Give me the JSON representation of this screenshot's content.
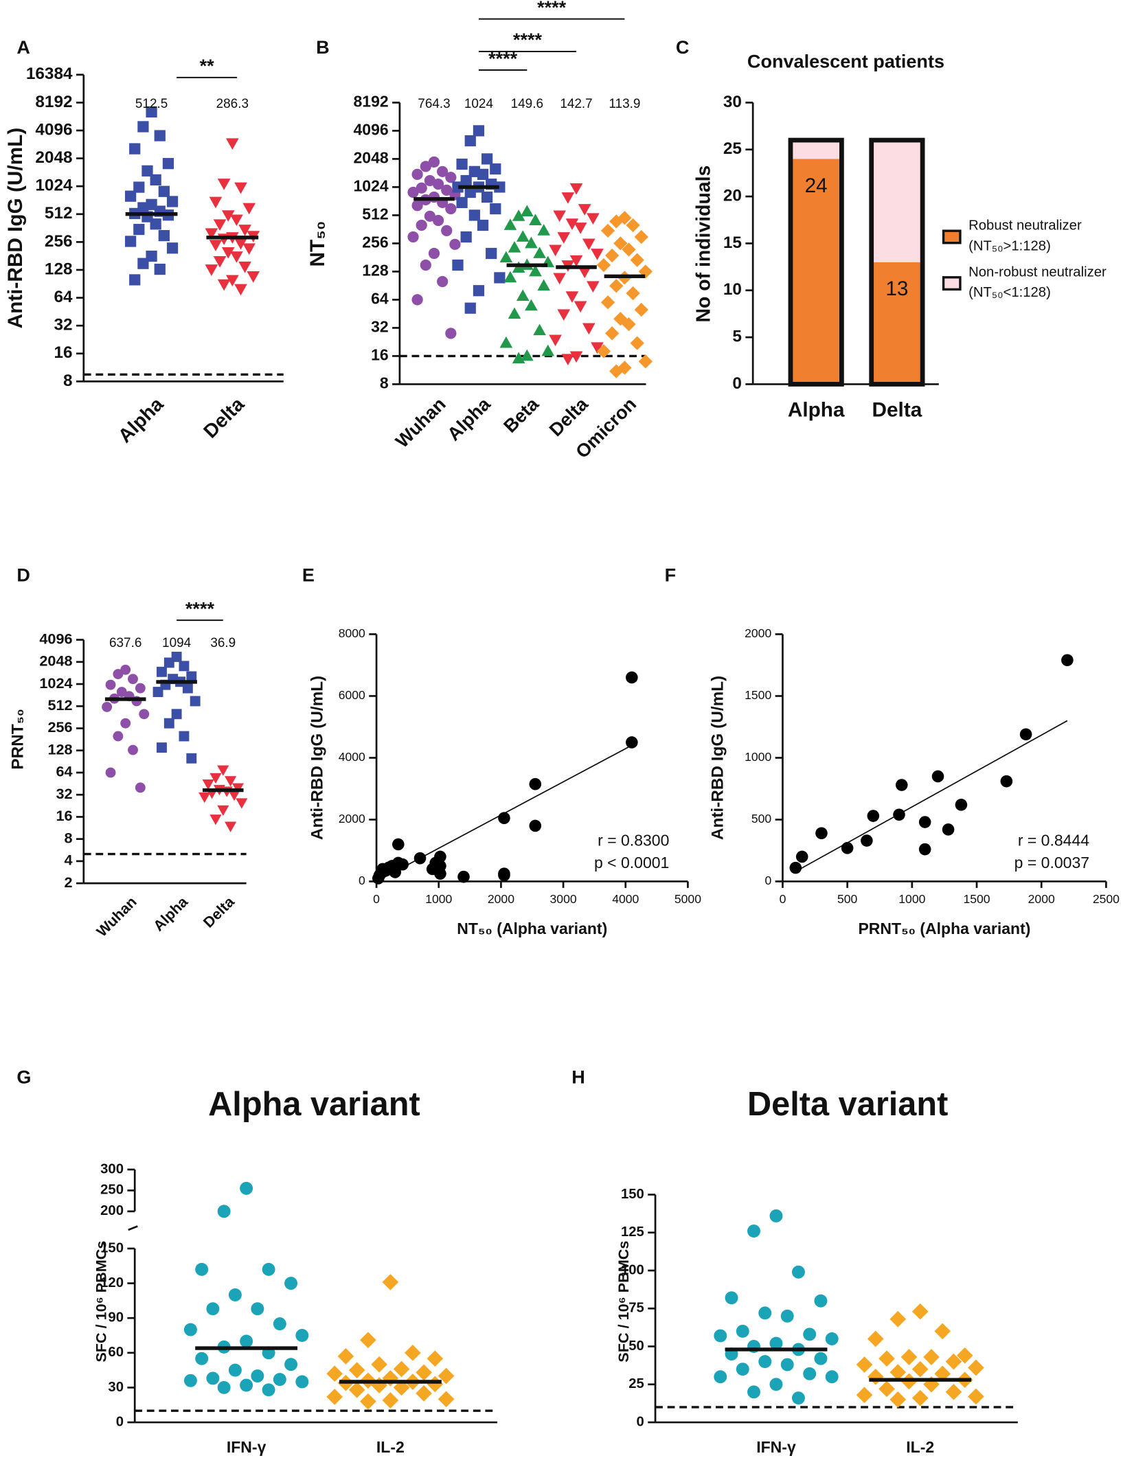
{
  "chart_data": [
    {
      "type": "strip",
      "panel": "A",
      "ylabel": "Anti-RBD IgG (U/mL)",
      "categories": [
        "Alpha",
        "Delta"
      ],
      "log2": true,
      "ylim": [
        8,
        16384
      ],
      "yticks": [
        8,
        16,
        32,
        64,
        128,
        256,
        512,
        1024,
        2048,
        4096,
        8192,
        16384
      ],
      "threshold": 9.5,
      "medians": [
        512.5,
        286.3
      ],
      "significance": [
        "**"
      ],
      "series": [
        {
          "color": "#3b4fa6",
          "marker": "square",
          "values": [
            6500,
            4500,
            3600,
            2600,
            1800,
            1500,
            1200,
            1000,
            900,
            800,
            700,
            650,
            600,
            550,
            520,
            500,
            480,
            400,
            350,
            300,
            260,
            220,
            180,
            150,
            130,
            100
          ]
        },
        {
          "color": "#e8303f",
          "marker": "triangle-down",
          "values": [
            3000,
            1100,
            1000,
            700,
            600,
            500,
            450,
            400,
            350,
            320,
            300,
            290,
            280,
            250,
            240,
            220,
            200,
            180,
            160,
            140,
            130,
            110,
            100,
            90,
            80
          ]
        }
      ]
    },
    {
      "type": "strip",
      "panel": "B",
      "ylabel": "NT₅₀",
      "categories": [
        "Wuhan",
        "Alpha",
        "Beta",
        "Delta",
        "Omicron"
      ],
      "log2": true,
      "ylim": [
        8,
        8192
      ],
      "yticks": [
        8,
        16,
        32,
        64,
        128,
        256,
        512,
        1024,
        2048,
        4096,
        8192
      ],
      "threshold": 16,
      "medians": [
        764.3,
        1024,
        149.6,
        142.7,
        113.9
      ],
      "significance": [
        "****",
        "****",
        "****"
      ],
      "series": [
        {
          "color": "#8e4fa8",
          "marker": "circle",
          "values": [
            1900,
            1700,
            1500,
            1400,
            1300,
            1200,
            1100,
            1000,
            950,
            900,
            850,
            800,
            750,
            700,
            650,
            600,
            500,
            450,
            400,
            350,
            300,
            250,
            200,
            150,
            100,
            64,
            28
          ]
        },
        {
          "color": "#3b4fa6",
          "marker": "square",
          "values": [
            4096,
            3200,
            2048,
            1800,
            1600,
            1500,
            1400,
            1200,
            1100,
            1024,
            1024,
            1024,
            900,
            800,
            700,
            600,
            512,
            400,
            300,
            200,
            150,
            110,
            80,
            52
          ]
        },
        {
          "color": "#22994a",
          "marker": "triangle",
          "values": [
            560,
            500,
            450,
            400,
            350,
            300,
            256,
            230,
            200,
            180,
            160,
            150,
            140,
            128,
            110,
            90,
            70,
            55,
            45,
            30,
            22,
            18,
            16,
            15
          ]
        },
        {
          "color": "#e8303f",
          "marker": "triangle-down",
          "values": [
            1000,
            800,
            600,
            512,
            480,
            420,
            380,
            300,
            256,
            220,
            200,
            170,
            150,
            128,
            110,
            90,
            70,
            55,
            45,
            32,
            24,
            20,
            16,
            15
          ]
        },
        {
          "color": "#f5972b",
          "marker": "diamond",
          "values": [
            480,
            440,
            400,
            350,
            300,
            256,
            220,
            190,
            170,
            150,
            128,
            110,
            90,
            75,
            60,
            50,
            40,
            35,
            28,
            22,
            18,
            14,
            12,
            11
          ]
        }
      ]
    },
    {
      "type": "stacked_bar",
      "panel": "C",
      "title": "Convalescent patients",
      "ylabel": "No of individuals",
      "categories": [
        "Alpha",
        "Delta"
      ],
      "ylim": [
        0,
        30
      ],
      "yticks": [
        0,
        5,
        10,
        15,
        20,
        25,
        30
      ],
      "series": [
        {
          "name": "Robust neutralizer",
          "criterion": "(NT₅₀>1:128)",
          "color": "#f08030",
          "values": [
            24,
            13
          ],
          "show_values": true
        },
        {
          "name": "Non-robust neutralizer",
          "criterion": "(NT₅₀<1:128)",
          "color": "#fcdde3",
          "values": [
            2,
            13
          ]
        }
      ]
    },
    {
      "type": "strip",
      "panel": "D",
      "ylabel": "PRNT₅₀",
      "categories": [
        "Wuhan",
        "Alpha",
        "Delta"
      ],
      "log2": true,
      "ylim": [
        2,
        4096
      ],
      "yticks": [
        2,
        4,
        8,
        16,
        32,
        64,
        128,
        256,
        512,
        1024,
        2048,
        4096
      ],
      "threshold": 5,
      "medians": [
        637.6,
        1094,
        36.9
      ],
      "significance": [
        "****"
      ],
      "series": [
        {
          "color": "#8e4fa8",
          "marker": "circle",
          "values": [
            1600,
            1400,
            1200,
            1000,
            900,
            800,
            700,
            650,
            600,
            500,
            400,
            300,
            200,
            130,
            64,
            40
          ]
        },
        {
          "color": "#3b4fa6",
          "marker": "square",
          "values": [
            2400,
            2000,
            1800,
            1500,
            1300,
            1200,
            1100,
            1000,
            900,
            800,
            600,
            400,
            300,
            200,
            140,
            100
          ]
        },
        {
          "color": "#e8303f",
          "marker": "triangle-down",
          "values": [
            70,
            55,
            50,
            45,
            40,
            38,
            36,
            34,
            32,
            30,
            25,
            20,
            15,
            12
          ]
        }
      ]
    },
    {
      "type": "scatter",
      "panel": "E",
      "xlabel": "NT₅₀ (Alpha variant)",
      "ylabel": "Anti-RBD IgG (U/mL)",
      "xlim": [
        0,
        5000
      ],
      "xticks": [
        0,
        1000,
        2000,
        3000,
        4000,
        5000
      ],
      "ylim": [
        0,
        8000
      ],
      "yticks": [
        0,
        2000,
        4000,
        6000,
        8000
      ],
      "x": [
        4100,
        4100,
        2550,
        2550,
        2050,
        2050,
        2050,
        1400,
        1024,
        1024,
        1024,
        950,
        900,
        700,
        420,
        350,
        350,
        300,
        250,
        200,
        150,
        100,
        50,
        30
      ],
      "values": [
        6600,
        4500,
        3150,
        1800,
        2050,
        250,
        200,
        150,
        800,
        500,
        250,
        600,
        400,
        750,
        550,
        1200,
        600,
        300,
        500,
        450,
        350,
        400,
        200,
        100
      ],
      "color": "#000000",
      "fit": {
        "x": [
          0,
          4096
        ],
        "y": [
          0,
          4400
        ]
      },
      "annotations": [
        "r = 0.8300",
        "p < 0.0001"
      ]
    },
    {
      "type": "scatter",
      "panel": "F",
      "xlabel": "PRNT₅₀ (Alpha variant)",
      "ylabel": "Anti-RBD IgG (U/mL)",
      "xlim": [
        0,
        2500
      ],
      "xticks": [
        0,
        500,
        1000,
        1500,
        2000,
        2500
      ],
      "ylim": [
        0,
        2000
      ],
      "yticks": [
        0,
        500,
        1000,
        1500,
        2000
      ],
      "x": [
        100,
        150,
        300,
        500,
        650,
        700,
        900,
        920,
        1100,
        1100,
        1200,
        1280,
        1380,
        1730,
        1880,
        2200
      ],
      "values": [
        110,
        200,
        390,
        270,
        330,
        530,
        540,
        780,
        480,
        260,
        850,
        420,
        620,
        810,
        1190,
        1790
      ],
      "color": "#000000",
      "fit": {
        "x": [
          100,
          2200
        ],
        "y": [
          80,
          1300
        ]
      },
      "annotations": [
        "r = 0.8444",
        "p = 0.0037"
      ]
    },
    {
      "type": "strip",
      "panel": "G",
      "title": "Alpha variant",
      "ylabel": "SFC / 10⁶ PBMCs",
      "categories": [
        "IFN-γ",
        "IL-2"
      ],
      "ylim": [
        0,
        300
      ],
      "ybreak": [
        150,
        200
      ],
      "yticks": [
        0,
        30,
        60,
        90,
        120,
        150,
        200,
        250,
        300
      ],
      "threshold": 10,
      "medians": [
        64,
        35
      ],
      "series": [
        {
          "color": "#1ba3b8",
          "marker": "circle",
          "values": [
            255,
            200,
            132,
            132,
            120,
            110,
            98,
            98,
            85,
            80,
            75,
            70,
            65,
            60,
            55,
            50,
            45,
            40,
            38,
            37,
            36,
            35,
            32,
            30,
            28
          ]
        },
        {
          "color": "#f5a623",
          "marker": "diamond",
          "values": [
            121,
            71,
            60,
            57,
            55,
            50,
            46,
            45,
            43,
            42,
            40,
            38,
            36,
            35,
            34,
            33,
            32,
            30,
            28,
            25,
            22,
            20,
            19,
            18
          ]
        }
      ]
    },
    {
      "type": "strip",
      "panel": "H",
      "title": "Delta variant",
      "ylabel": "SFC / 10⁶ PBMCs",
      "categories": [
        "IFN-γ",
        "IL-2"
      ],
      "ylim": [
        0,
        150
      ],
      "yticks": [
        0,
        25,
        50,
        75,
        100,
        125,
        150
      ],
      "threshold": 10,
      "medians": [
        48,
        28
      ],
      "series": [
        {
          "color": "#1ba3b8",
          "marker": "circle",
          "values": [
            136,
            126,
            99,
            82,
            80,
            72,
            70,
            60,
            58,
            57,
            55,
            52,
            50,
            48,
            45,
            42,
            40,
            38,
            35,
            32,
            30,
            30,
            25,
            20,
            16
          ]
        },
        {
          "color": "#f5a623",
          "marker": "diamond",
          "values": [
            73,
            68,
            60,
            55,
            44,
            43,
            43,
            42,
            40,
            38,
            36,
            35,
            33,
            32,
            30,
            28,
            27,
            25,
            22,
            20,
            18,
            17,
            16,
            15
          ]
        }
      ]
    }
  ]
}
